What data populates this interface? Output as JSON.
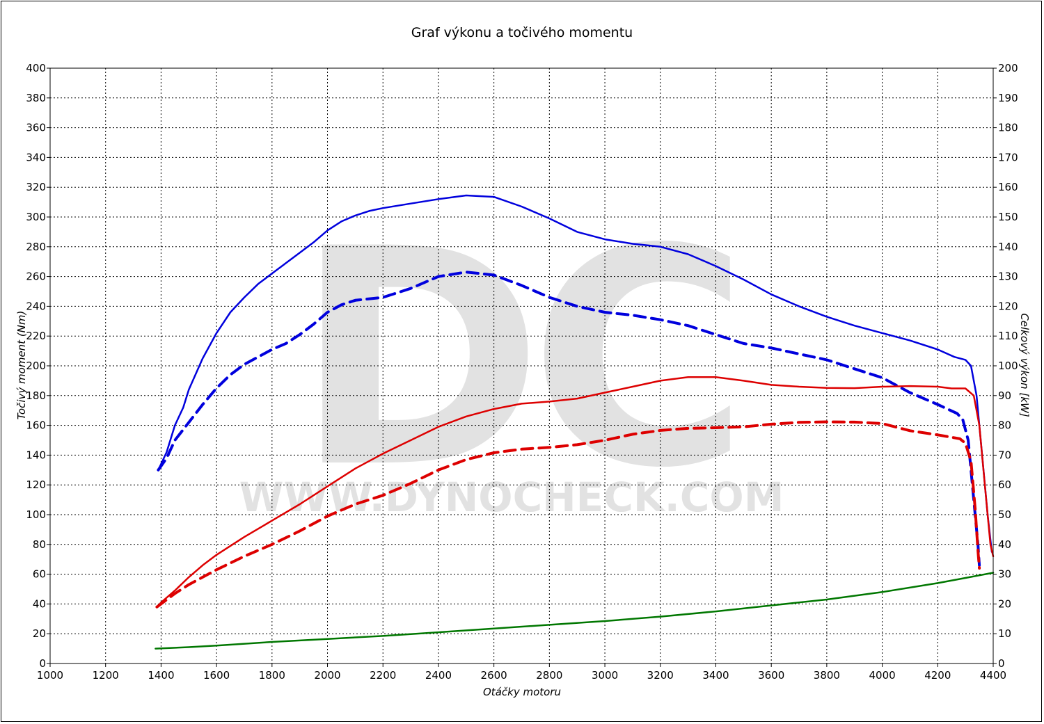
{
  "chart_data": {
    "type": "line",
    "title": "Graf výkonu a točivého momentu",
    "xlabel": "Otáčky motoru",
    "ylabel_left": "Točivý moment (Nm)",
    "ylabel_right": "Celkový výkon [kW]",
    "watermark_logo": "DC",
    "watermark_text": "WWW.DYNOCHECK.COM",
    "xlim": [
      1000,
      4400
    ],
    "ylim_left": [
      0,
      400
    ],
    "ylim_right": [
      0,
      200
    ],
    "x_ticks": [
      1000,
      1200,
      1400,
      1600,
      1800,
      2000,
      2200,
      2400,
      2600,
      2800,
      3000,
      3200,
      3400,
      3600,
      3800,
      4000,
      4200,
      4400
    ],
    "y_ticks_left": [
      0,
      20,
      40,
      60,
      80,
      100,
      120,
      140,
      160,
      180,
      200,
      220,
      240,
      260,
      280,
      300,
      320,
      340,
      360,
      380,
      400
    ],
    "y_ticks_right": [
      0,
      10,
      20,
      30,
      40,
      50,
      60,
      70,
      80,
      90,
      100,
      110,
      120,
      130,
      140,
      150,
      160,
      170,
      180,
      190,
      200
    ],
    "grid": true,
    "series": [
      {
        "color": "#0000dd",
        "style": "solid",
        "axis": "left",
        "points": [
          [
            1390,
            130
          ],
          [
            1420,
            142
          ],
          [
            1450,
            160
          ],
          [
            1480,
            172
          ],
          [
            1500,
            184
          ],
          [
            1550,
            205
          ],
          [
            1600,
            222
          ],
          [
            1650,
            236
          ],
          [
            1700,
            246
          ],
          [
            1750,
            255
          ],
          [
            1800,
            262
          ],
          [
            1850,
            269
          ],
          [
            1900,
            276
          ],
          [
            1950,
            283
          ],
          [
            2000,
            291
          ],
          [
            2050,
            297
          ],
          [
            2100,
            301
          ],
          [
            2150,
            304
          ],
          [
            2200,
            306
          ],
          [
            2300,
            309
          ],
          [
            2400,
            312
          ],
          [
            2500,
            314.5
          ],
          [
            2600,
            313.5
          ],
          [
            2700,
            307
          ],
          [
            2800,
            299
          ],
          [
            2900,
            290
          ],
          [
            3000,
            285
          ],
          [
            3100,
            282
          ],
          [
            3200,
            280
          ],
          [
            3300,
            275
          ],
          [
            3400,
            267
          ],
          [
            3500,
            258
          ],
          [
            3600,
            248
          ],
          [
            3700,
            240
          ],
          [
            3800,
            233
          ],
          [
            3900,
            227
          ],
          [
            4000,
            222
          ],
          [
            4100,
            217
          ],
          [
            4200,
            211
          ],
          [
            4260,
            206
          ],
          [
            4300,
            204
          ],
          [
            4320,
            200
          ],
          [
            4340,
            180
          ],
          [
            4360,
            140
          ],
          [
            4380,
            100
          ],
          [
            4395,
            75
          ]
        ]
      },
      {
        "color": "#0000dd",
        "style": "dashed",
        "axis": "left",
        "points": [
          [
            1390,
            130
          ],
          [
            1420,
            138
          ],
          [
            1450,
            150
          ],
          [
            1500,
            162
          ],
          [
            1550,
            174
          ],
          [
            1600,
            185
          ],
          [
            1650,
            194
          ],
          [
            1700,
            201
          ],
          [
            1750,
            206
          ],
          [
            1800,
            211
          ],
          [
            1850,
            215
          ],
          [
            1900,
            221
          ],
          [
            1950,
            228
          ],
          [
            2000,
            236
          ],
          [
            2050,
            241
          ],
          [
            2100,
            244
          ],
          [
            2200,
            246
          ],
          [
            2300,
            252
          ],
          [
            2400,
            260
          ],
          [
            2500,
            263
          ],
          [
            2600,
            261
          ],
          [
            2700,
            254
          ],
          [
            2800,
            246
          ],
          [
            2900,
            240
          ],
          [
            3000,
            236
          ],
          [
            3100,
            234
          ],
          [
            3200,
            231
          ],
          [
            3300,
            227
          ],
          [
            3400,
            221
          ],
          [
            3500,
            215
          ],
          [
            3600,
            212
          ],
          [
            3700,
            208
          ],
          [
            3800,
            204
          ],
          [
            3900,
            198
          ],
          [
            4000,
            192
          ],
          [
            4100,
            182
          ],
          [
            4200,
            174
          ],
          [
            4270,
            168
          ],
          [
            4290,
            164
          ],
          [
            4310,
            150
          ],
          [
            4330,
            110
          ],
          [
            4345,
            80
          ],
          [
            4350,
            66
          ]
        ]
      },
      {
        "color": "#dd0000",
        "style": "solid",
        "axis": "right",
        "points": [
          [
            1385,
            19
          ],
          [
            1400,
            20.5
          ],
          [
            1450,
            24.5
          ],
          [
            1500,
            29
          ],
          [
            1550,
            33
          ],
          [
            1600,
            36.5
          ],
          [
            1700,
            42.5
          ],
          [
            1800,
            48
          ],
          [
            1900,
            53.5
          ],
          [
            2000,
            59.5
          ],
          [
            2100,
            65.5
          ],
          [
            2200,
            70.5
          ],
          [
            2300,
            75
          ],
          [
            2400,
            79.5
          ],
          [
            2500,
            83
          ],
          [
            2600,
            85.5
          ],
          [
            2700,
            87.3
          ],
          [
            2800,
            88
          ],
          [
            2900,
            89
          ],
          [
            3000,
            91
          ],
          [
            3100,
            93
          ],
          [
            3200,
            95
          ],
          [
            3300,
            96.2
          ],
          [
            3400,
            96.2
          ],
          [
            3500,
            95
          ],
          [
            3600,
            93.6
          ],
          [
            3700,
            93
          ],
          [
            3800,
            92.6
          ],
          [
            3900,
            92.5
          ],
          [
            4000,
            93
          ],
          [
            4100,
            93.2
          ],
          [
            4200,
            93
          ],
          [
            4250,
            92.4
          ],
          [
            4300,
            92.4
          ],
          [
            4330,
            90
          ],
          [
            4350,
            80
          ],
          [
            4370,
            60
          ],
          [
            4390,
            40
          ],
          [
            4400,
            36
          ]
        ]
      },
      {
        "color": "#dd0000",
        "style": "dashed",
        "axis": "right",
        "points": [
          [
            1385,
            19
          ],
          [
            1400,
            20
          ],
          [
            1450,
            23.5
          ],
          [
            1500,
            26.5
          ],
          [
            1550,
            29
          ],
          [
            1600,
            31.5
          ],
          [
            1700,
            36
          ],
          [
            1800,
            40
          ],
          [
            1900,
            44.5
          ],
          [
            2000,
            49.5
          ],
          [
            2100,
            53.5
          ],
          [
            2200,
            56.5
          ],
          [
            2300,
            60.5
          ],
          [
            2400,
            65
          ],
          [
            2500,
            68.5
          ],
          [
            2600,
            70.8
          ],
          [
            2700,
            72
          ],
          [
            2800,
            72.6
          ],
          [
            2900,
            73.5
          ],
          [
            3000,
            75
          ],
          [
            3100,
            77
          ],
          [
            3200,
            78.3
          ],
          [
            3300,
            79
          ],
          [
            3400,
            79.2
          ],
          [
            3500,
            79.5
          ],
          [
            3600,
            80.4
          ],
          [
            3700,
            81
          ],
          [
            3800,
            81.2
          ],
          [
            3900,
            81.1
          ],
          [
            4000,
            80.6
          ],
          [
            4100,
            78.2
          ],
          [
            4200,
            76.8
          ],
          [
            4250,
            76
          ],
          [
            4280,
            75.5
          ],
          [
            4300,
            74
          ],
          [
            4320,
            68
          ],
          [
            4335,
            52
          ],
          [
            4345,
            38
          ],
          [
            4350,
            32
          ]
        ]
      },
      {
        "color": "#007700",
        "style": "solid",
        "axis": "left",
        "points": [
          [
            1380,
            10
          ],
          [
            1500,
            11
          ],
          [
            1600,
            12
          ],
          [
            1800,
            14.5
          ],
          [
            2000,
            16.5
          ],
          [
            2200,
            18.5
          ],
          [
            2400,
            21
          ],
          [
            2600,
            23.5
          ],
          [
            2800,
            26
          ],
          [
            3000,
            28.5
          ],
          [
            3200,
            31.5
          ],
          [
            3400,
            35
          ],
          [
            3600,
            39
          ],
          [
            3800,
            43
          ],
          [
            4000,
            48
          ],
          [
            4200,
            54
          ],
          [
            4300,
            57.5
          ],
          [
            4400,
            61
          ]
        ]
      }
    ]
  }
}
